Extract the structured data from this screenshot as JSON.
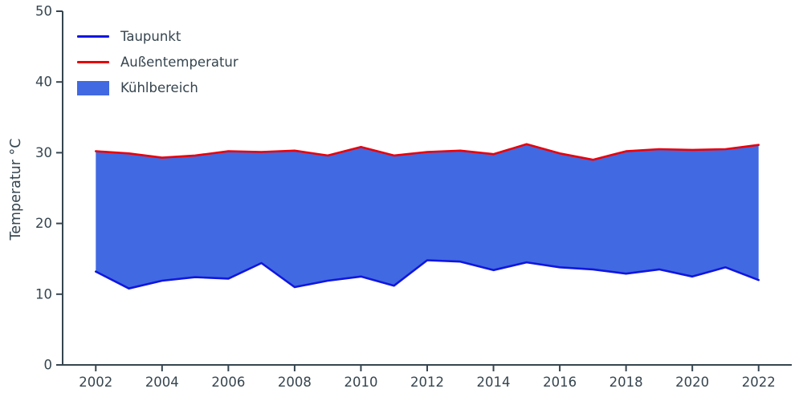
{
  "chart_data": {
    "type": "area",
    "title": "",
    "xlabel": "",
    "ylabel": "Temperatur °C",
    "ylim": [
      0,
      50
    ],
    "yticks": [
      0,
      10,
      20,
      30,
      40,
      50
    ],
    "xticks": [
      2002,
      2004,
      2006,
      2008,
      2010,
      2012,
      2014,
      2016,
      2018,
      2020,
      2022
    ],
    "x": [
      2002,
      2003,
      2004,
      2005,
      2006,
      2007,
      2008,
      2009,
      2010,
      2011,
      2012,
      2013,
      2014,
      2015,
      2016,
      2017,
      2018,
      2019,
      2020,
      2021,
      2022
    ],
    "series": [
      {
        "name": "Taupunkt",
        "color": "#1016e0",
        "values": [
          13.2,
          10.8,
          11.9,
          12.4,
          12.2,
          14.4,
          11.0,
          11.9,
          12.5,
          11.2,
          14.8,
          14.6,
          13.4,
          14.5,
          13.8,
          13.5,
          12.9,
          13.5,
          12.5,
          13.8,
          12.0
        ]
      },
      {
        "name": "Außentemperatur",
        "color": "#e8000b",
        "values": [
          30.2,
          29.9,
          29.3,
          29.6,
          30.2,
          30.1,
          30.3,
          29.6,
          30.8,
          29.6,
          30.1,
          30.3,
          29.8,
          31.2,
          29.9,
          29.0,
          30.2,
          30.5,
          30.4,
          30.5,
          31.1
        ]
      }
    ],
    "fill": {
      "name": "Kühlbereich",
      "color": "#4169e1"
    },
    "axis_color": "#36454f",
    "grid": false,
    "legend_position": "upper left"
  }
}
